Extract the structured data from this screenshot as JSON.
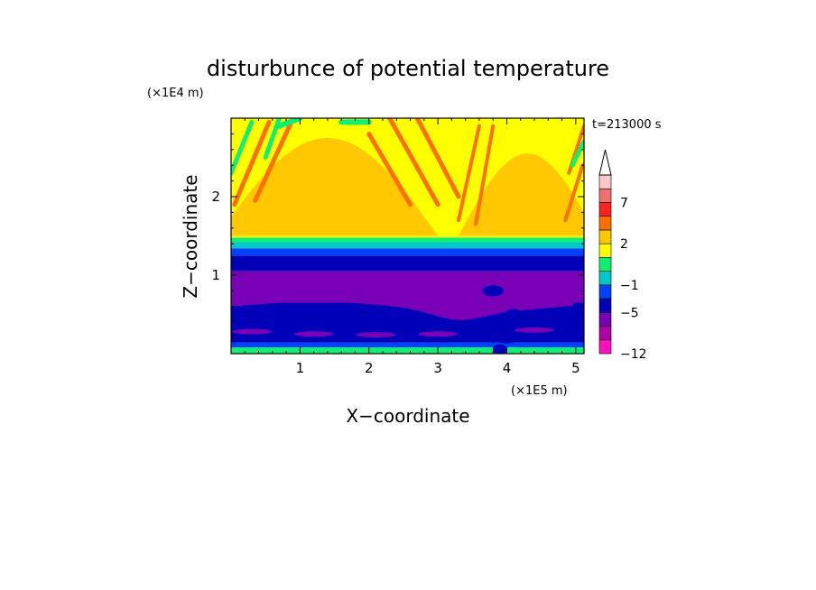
{
  "chart_data": {
    "type": "heatmap",
    "title": "disturbunce of potential temperature",
    "xlabel": "X−coordinate",
    "ylabel": "Z−coordinate",
    "x_unit": "(×1E5 m)",
    "y_unit": "(×1E4 m)",
    "time_label": "t=213000 s",
    "xlim": [
      0,
      5.12
    ],
    "ylim": [
      0,
      3.0
    ],
    "x_ticks": [
      1,
      2,
      3,
      4,
      5
    ],
    "x_tick_labels": [
      "1",
      "2",
      "3",
      "4",
      "5"
    ],
    "y_ticks": [
      1,
      2
    ],
    "y_tick_labels": [
      "1",
      "2"
    ],
    "colorbar": {
      "extend": "max",
      "levels": [
        -12,
        -9,
        -7,
        -5,
        -3,
        -1,
        0,
        1,
        2,
        3,
        5,
        7,
        9,
        11
      ],
      "tick_values": [
        -12,
        -5,
        -1,
        2,
        7
      ],
      "tick_labels": [
        "−12",
        "−5",
        "−1",
        "2",
        "7"
      ],
      "colors": [
        "#ff10c0",
        "#b000a8",
        "#7a00b8",
        "#0000b8",
        "#0040ff",
        "#00c8c8",
        "#10f070",
        "#ffff00",
        "#ffc800",
        "#ff6e00",
        "#ff2020",
        "#f07070",
        "#ffc8c8",
        "#ffffff"
      ]
    },
    "bands": [
      {
        "z0": 0.0,
        "z1": 0.08,
        "level": 6
      },
      {
        "z0": 0.08,
        "z1": 0.14,
        "level": 4
      },
      {
        "z0": 0.14,
        "z1": 0.65,
        "level": 3
      },
      {
        "z0": 0.65,
        "z1": 1.05,
        "level": 2
      },
      {
        "z0": 1.05,
        "z1": 1.25,
        "level": 3
      },
      {
        "z0": 1.25,
        "z1": 1.34,
        "level": 4
      },
      {
        "z0": 1.34,
        "z1": 1.42,
        "level": 5
      },
      {
        "z0": 1.42,
        "z1": 1.48,
        "level": 6
      },
      {
        "z0": 1.48,
        "z1": 3.0,
        "level": 7
      }
    ],
    "features": [
      {
        "kind": "purple_tongue",
        "x0": 0.0,
        "x1": 5.12,
        "z": 0.62,
        "level": 2
      },
      {
        "kind": "wave_maximum",
        "xc": 1.3,
        "zc": 2.2,
        "level": 8
      },
      {
        "kind": "wave_maximum",
        "xc": 4.3,
        "zc": 2.3,
        "level": 8
      }
    ]
  }
}
